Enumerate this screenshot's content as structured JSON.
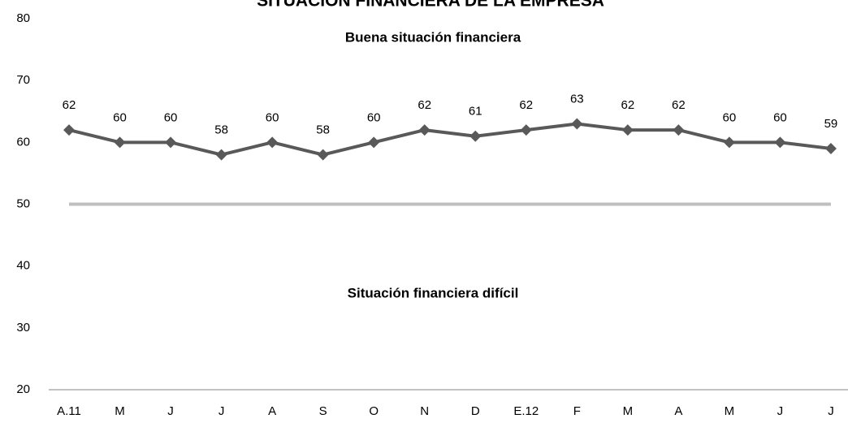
{
  "chart_data": {
    "type": "line",
    "title": "SITUACIÓN FINANCIERA DE LA EMPRESA",
    "annotations": [
      "Buena situación financiera",
      "Situación financiera difícil"
    ],
    "categories": [
      "A.11",
      "M",
      "J",
      "J",
      "A",
      "S",
      "O",
      "N",
      "D",
      "E.12",
      "F",
      "M",
      "A",
      "M",
      "J",
      "J"
    ],
    "series": [
      {
        "name": "Situación financiera",
        "color": "#595959",
        "values": [
          62,
          60,
          60,
          58,
          60,
          58,
          60,
          62,
          61,
          62,
          63,
          62,
          62,
          60,
          60,
          59
        ]
      }
    ],
    "threshold": 50,
    "threshold_color": "#bfbfbf",
    "ylim": [
      20,
      80
    ],
    "yticks": [
      20,
      30,
      40,
      50,
      60,
      70,
      80
    ],
    "legend": false,
    "grid": false
  }
}
